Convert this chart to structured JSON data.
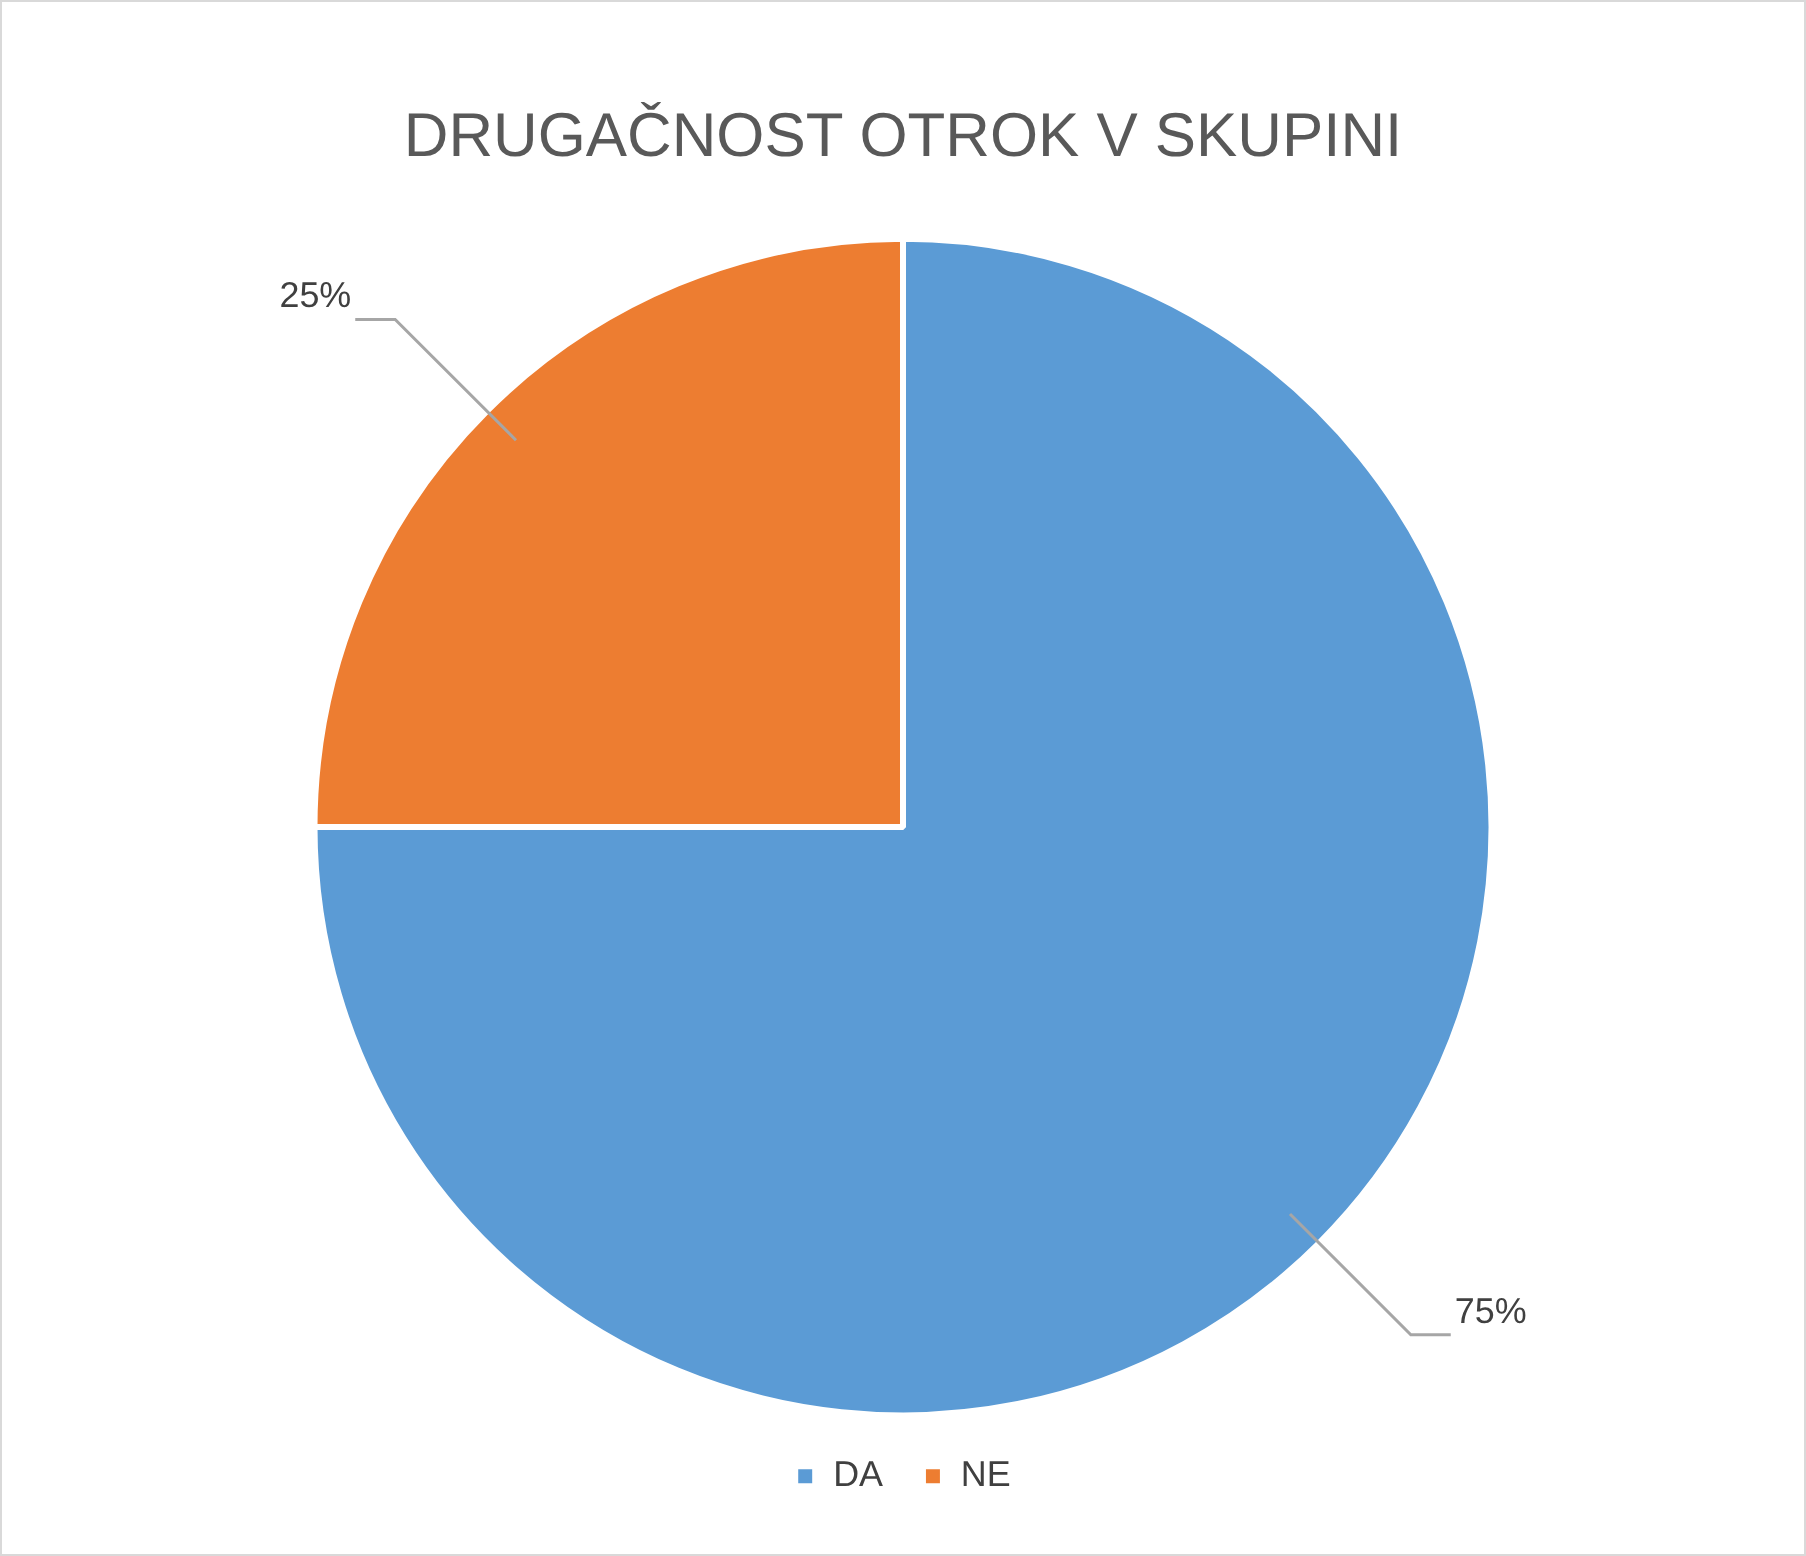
{
  "chart_data": {
    "type": "pie",
    "title": "DRUGAČNOST OTROK V SKUPINI",
    "categories": [
      "DA",
      "NE"
    ],
    "values": [
      75,
      25
    ],
    "colors": [
      "#5b9bd5",
      "#ed7d31"
    ],
    "value_labels": [
      "75%",
      "25%"
    ],
    "legend": "bottom"
  }
}
